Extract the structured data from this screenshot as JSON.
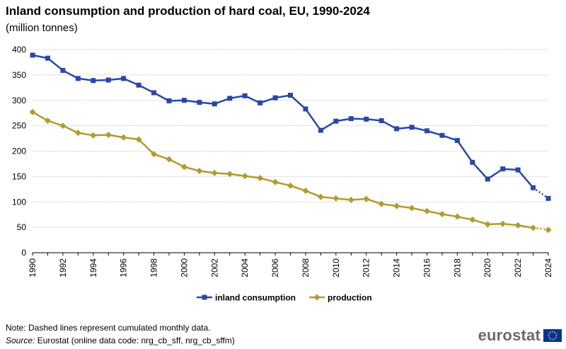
{
  "title": "Inland consumption and production of hard coal, EU, 1990-2024",
  "subtitle": "(million tonnes)",
  "note": "Note: Dashed lines represent cumulated monthly data.",
  "source_label": "Source:",
  "source_text": "Eurostat (online data code: nrg_cb_sff, nrg_cb_sffm)",
  "logo_text": "eurostat",
  "colors": {
    "consumption": "#2a47a8",
    "production": "#b59a2c",
    "grid": "#c8c8c8",
    "axis": "#000000",
    "flag": "#003399",
    "stars": "#ffcc00"
  },
  "chart_data": {
    "type": "line",
    "x": [
      1990,
      1991,
      1992,
      1993,
      1994,
      1995,
      1996,
      1997,
      1998,
      1999,
      2000,
      2001,
      2002,
      2003,
      2004,
      2005,
      2006,
      2007,
      2008,
      2009,
      2010,
      2011,
      2012,
      2013,
      2014,
      2015,
      2016,
      2017,
      2018,
      2019,
      2020,
      2021,
      2022,
      2023,
      2024
    ],
    "x_tick_labels": [
      "1990",
      "1992",
      "1994",
      "1996",
      "1998",
      "2000",
      "2002",
      "2004",
      "2006",
      "2008",
      "2010",
      "2012",
      "2014",
      "2016",
      "2018",
      "2020",
      "2022",
      "2024"
    ],
    "y_tick_labels": [
      "0",
      "50",
      "100",
      "150",
      "200",
      "250",
      "300",
      "350",
      "400"
    ],
    "ylim": [
      0,
      400
    ],
    "xlim": [
      1990,
      2024
    ],
    "grid": true,
    "legend_position": "bottom",
    "dashed_from_x": 2023,
    "series": [
      {
        "name": "inland consumption",
        "marker": "square",
        "values": [
          389,
          383,
          359,
          343,
          339,
          340,
          343,
          330,
          315,
          299,
          300,
          296,
          293,
          304,
          309,
          295,
          305,
          310,
          283,
          241,
          259,
          264,
          263,
          260,
          244,
          247,
          240,
          231,
          221,
          178,
          145,
          165,
          163,
          128,
          107
        ]
      },
      {
        "name": "production",
        "marker": "diamond",
        "values": [
          277,
          260,
          250,
          236,
          231,
          232,
          227,
          223,
          194,
          184,
          169,
          161,
          157,
          155,
          151,
          147,
          139,
          132,
          122,
          110,
          107,
          104,
          106,
          96,
          92,
          88,
          82,
          76,
          71,
          65,
          56,
          57,
          54,
          49,
          45
        ]
      }
    ]
  }
}
